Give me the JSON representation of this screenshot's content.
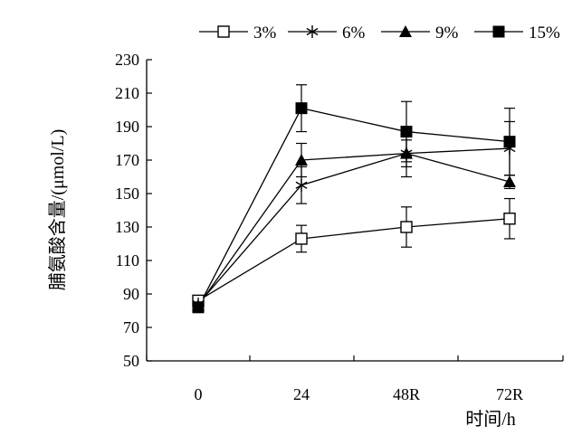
{
  "chart_data": {
    "type": "line",
    "title": "",
    "xlabel": "时间/h",
    "ylabel": "脯氨酸含量/(μmol/L)",
    "categories": [
      "0",
      "24",
      "48R",
      "72R"
    ],
    "ylim": [
      50,
      230
    ],
    "yticks": [
      "50",
      "70",
      "90",
      "110",
      "130",
      "150",
      "170",
      "190",
      "210",
      "230"
    ],
    "grid": false,
    "legend_position": "top",
    "series": [
      {
        "name": "3%",
        "marker": "square-open",
        "values": [
          86,
          123,
          130,
          135
        ],
        "errors": [
          3,
          8,
          12,
          12
        ]
      },
      {
        "name": "6%",
        "marker": "asterisk",
        "values": [
          84,
          155,
          174,
          177
        ],
        "errors": [
          3,
          11,
          14,
          16
        ]
      },
      {
        "name": "9%",
        "marker": "triangle",
        "values": [
          83,
          170,
          174,
          157
        ],
        "errors": [
          3,
          10,
          8,
          4
        ]
      },
      {
        "name": "15%",
        "marker": "square-filled",
        "values": [
          82,
          201,
          187,
          181
        ],
        "errors": [
          3,
          14,
          18,
          20
        ]
      }
    ]
  }
}
